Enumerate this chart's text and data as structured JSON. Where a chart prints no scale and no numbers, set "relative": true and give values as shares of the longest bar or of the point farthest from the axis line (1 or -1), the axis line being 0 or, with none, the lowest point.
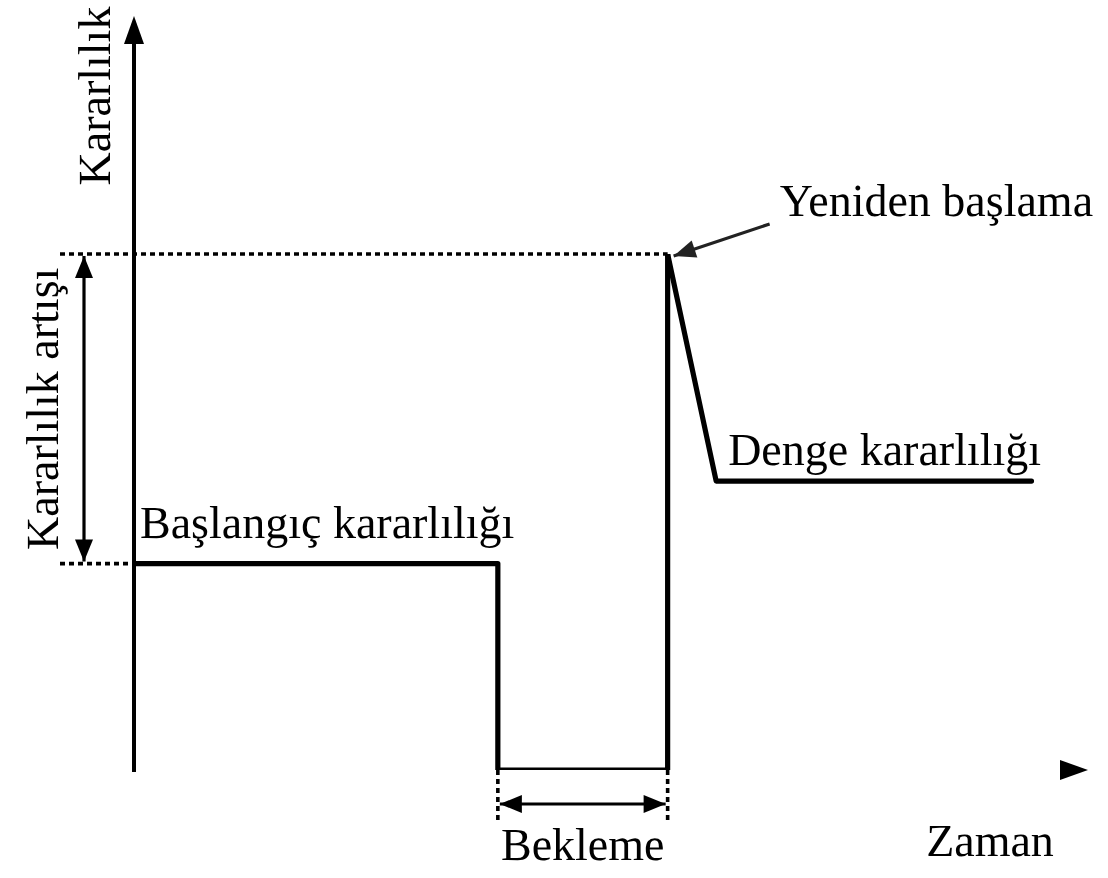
{
  "chart_data": {
    "type": "line",
    "relative": true,
    "xlabel": "Zaman",
    "ylabel": "Kararlılık",
    "categories": [
      null,
      null,
      null,
      null,
      null,
      null,
      null,
      null,
      null,
      null,
      null,
      null,
      null,
      null,
      null,
      null,
      null,
      null,
      null,
      null,
      null,
      null,
      null,
      null,
      null,
      null,
      null,
      null,
      null,
      null,
      null,
      null,
      null,
      null,
      null,
      null,
      null,
      null,
      null,
      null
    ],
    "series": [
      {
        "type": "step",
        "color": "#000000",
        "values": [
          0.4,
          0.4,
          0.4,
          0.4,
          0.4,
          0.4,
          0.4,
          0.4,
          0.4,
          0.4,
          0.4,
          0.4,
          0.4,
          0.4,
          0.4,
          0,
          0,
          0,
          0,
          0,
          0,
          0,
          1,
          null,
          null,
          null,
          null,
          null,
          null,
          null,
          null,
          null,
          null,
          null,
          null,
          null,
          null,
          null,
          null,
          null
        ]
      },
      {
        "color": "#000000",
        "values": [
          null,
          null,
          null,
          null,
          null,
          null,
          null,
          null,
          null,
          null,
          null,
          null,
          null,
          null,
          null,
          null,
          null,
          null,
          null,
          null,
          null,
          null,
          1,
          0.78,
          0.56,
          0.56,
          0.56,
          0.56,
          0.56,
          0.56,
          0.56,
          0.56,
          0.56,
          0.56,
          0.56,
          0.56,
          0.56,
          0.56,
          null,
          null
        ]
      }
    ],
    "annotations": [
      "Yeniden başlama",
      "Kararlılık artışı",
      {
        "text": "Denge kararlılığı",
        "y": 0.56
      },
      {
        "text": "Başlangıç kararlılığı",
        "y": 0.4
      },
      {
        "text": "Bekleme",
        "y": 0
      }
    ]
  }
}
